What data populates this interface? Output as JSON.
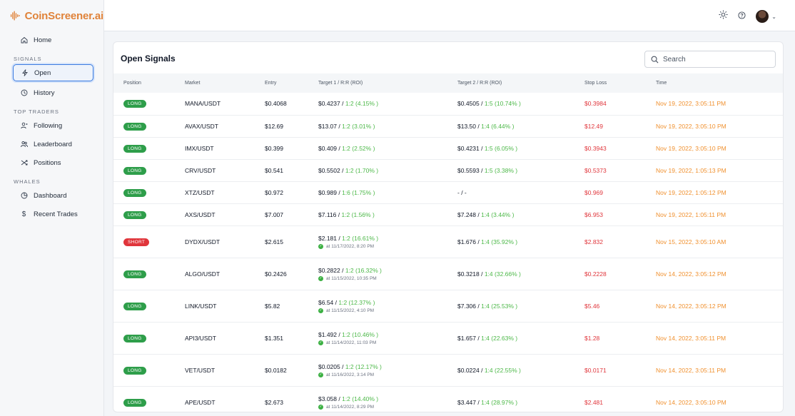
{
  "app": {
    "title": "CoinScreener.ai"
  },
  "sidebar": {
    "home": "Home",
    "signals_title": "SIGNALS",
    "open": "Open",
    "history": "History",
    "top_traders_title": "TOP TRADERS",
    "following": "Following",
    "leaderboard": "Leaderboard",
    "positions": "Positions",
    "whales_title": "WHALES",
    "dashboard": "Dashboard",
    "recent_trades": "Recent Trades"
  },
  "main": {
    "title": "Open Signals",
    "search_placeholder": "Search",
    "columns": [
      "Position",
      "Market",
      "Entry",
      "Target 1 / R:R (ROI)",
      "Target 2 / R:R (ROI)",
      "Stop Loss",
      "Time"
    ],
    "rows": [
      {
        "position": "LONG",
        "market": "MANA/USDT",
        "entry": "$0.4068",
        "t1": "$0.4237",
        "t1_rr": "1:2 (4.15% )",
        "t1_hit": "",
        "t2": "$0.4505",
        "t2_rr": "1:5 (10.74% )",
        "stop": "$0.3984",
        "time": "Nov 19, 2022, 3:05:11 PM"
      },
      {
        "position": "LONG",
        "market": "AVAX/USDT",
        "entry": "$12.69",
        "t1": "$13.07",
        "t1_rr": "1:2 (3.01% )",
        "t1_hit": "",
        "t2": "$13.50",
        "t2_rr": "1:4 (6.44% )",
        "stop": "$12.49",
        "time": "Nov 19, 2022, 3:05:10 PM"
      },
      {
        "position": "LONG",
        "market": "IMX/USDT",
        "entry": "$0.399",
        "t1": "$0.409",
        "t1_rr": "1:2 (2.52% )",
        "t1_hit": "",
        "t2": "$0.4231",
        "t2_rr": "1:5 (6.05% )",
        "stop": "$0.3943",
        "time": "Nov 19, 2022, 3:05:10 PM"
      },
      {
        "position": "LONG",
        "market": "CRV/USDT",
        "entry": "$0.541",
        "t1": "$0.5502",
        "t1_rr": "1:2 (1.70% )",
        "t1_hit": "",
        "t2": "$0.5593",
        "t2_rr": "1:5 (3.38% )",
        "stop": "$0.5373",
        "time": "Nov 19, 2022, 1:05:13 PM"
      },
      {
        "position": "LONG",
        "market": "XTZ/USDT",
        "entry": "$0.972",
        "t1": "$0.989",
        "t1_rr": "1:6 (1.75% )",
        "t1_hit": "",
        "t2": "- / -",
        "t2_rr": "",
        "stop": "$0.969",
        "time": "Nov 19, 2022, 1:05:12 PM"
      },
      {
        "position": "LONG",
        "market": "AXS/USDT",
        "entry": "$7.007",
        "t1": "$7.116",
        "t1_rr": "1:2 (1.56% )",
        "t1_hit": "",
        "t2": "$7.248",
        "t2_rr": "1:4 (3.44% )",
        "stop": "$6.953",
        "time": "Nov 19, 2022, 1:05:11 PM"
      },
      {
        "position": "SHORT",
        "market": "DYDX/USDT",
        "entry": "$2.615",
        "t1": "$2.181",
        "t1_rr": "1:2 (16.61% )",
        "t1_hit": "at 11/17/2022, 8:20 PM",
        "t2": "$1.676",
        "t2_rr": "1:4 (35.92% )",
        "stop": "$2.832",
        "time": "Nov 15, 2022, 3:05:10 AM"
      },
      {
        "position": "LONG",
        "market": "ALGO/USDT",
        "entry": "$0.2426",
        "t1": "$0.2822",
        "t1_rr": "1:2 (16.32% )",
        "t1_hit": "at 11/15/2022, 10:35 PM",
        "t2": "$0.3218",
        "t2_rr": "1:4 (32.66% )",
        "stop": "$0.2228",
        "time": "Nov 14, 2022, 3:05:12 PM"
      },
      {
        "position": "LONG",
        "market": "LINK/USDT",
        "entry": "$5.82",
        "t1": "$6.54",
        "t1_rr": "1:2 (12.37% )",
        "t1_hit": "at 11/15/2022, 4:10 PM",
        "t2": "$7.306",
        "t2_rr": "1:4 (25.53% )",
        "stop": "$5.46",
        "time": "Nov 14, 2022, 3:05:12 PM"
      },
      {
        "position": "LONG",
        "market": "API3/USDT",
        "entry": "$1.351",
        "t1": "$1.492",
        "t1_rr": "1:2 (10.46% )",
        "t1_hit": "at 11/14/2022, 11:03 PM",
        "t2": "$1.657",
        "t2_rr": "1:4 (22.63% )",
        "stop": "$1.28",
        "time": "Nov 14, 2022, 3:05:11 PM"
      },
      {
        "position": "LONG",
        "market": "VET/USDT",
        "entry": "$0.0182",
        "t1": "$0.0205",
        "t1_rr": "1:2 (12.17% )",
        "t1_hit": "at 11/16/2022, 3:14 PM",
        "t2": "$0.0224",
        "t2_rr": "1:4 (22.55% )",
        "stop": "$0.0171",
        "time": "Nov 14, 2022, 3:05:11 PM"
      },
      {
        "position": "LONG",
        "market": "APE/USDT",
        "entry": "$2.673",
        "t1": "$3.058",
        "t1_rr": "1:2 (14.40% )",
        "t1_hit": "at 11/14/2022, 8:29 PM",
        "t2": "$3.447",
        "t2_rr": "1:4 (28.97% )",
        "stop": "$2.481",
        "time": "Nov 14, 2022, 3:05:10 PM"
      }
    ]
  },
  "icons": {
    "logo": "soundwave-icon",
    "home": "home-icon",
    "open": "bolt-icon",
    "history": "clock-icon",
    "following": "user-follow-icon",
    "leaderboard": "users-icon",
    "positions": "shuffle-icon",
    "dashboard": "pie-icon",
    "recent_trades": "dollar-icon",
    "theme": "sun-icon",
    "help": "help-icon"
  },
  "colors": {
    "brand": "#e0833a",
    "long": "#2e9e4a",
    "short": "#e0353b",
    "rr": "#4cb848",
    "time": "#f0902e",
    "active_border": "#3b7be0"
  }
}
